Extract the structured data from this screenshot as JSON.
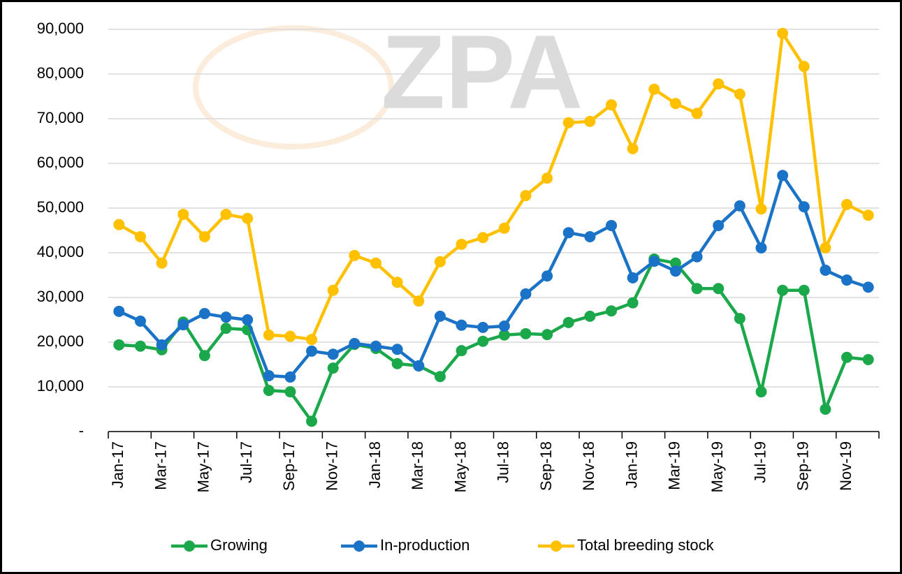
{
  "chart_data": {
    "type": "line",
    "watermark": "ZPA",
    "categories": [
      "Jan-17",
      null,
      "Mar-17",
      null,
      "May-17",
      null,
      "Jul-17",
      null,
      "Sep-17",
      null,
      "Nov-17",
      null,
      "Jan-18",
      null,
      "Mar-18",
      null,
      "May-18",
      null,
      "Jul-18",
      null,
      "Sep-18",
      null,
      "Nov-18",
      null,
      "Jan-19",
      null,
      "Mar-19",
      null,
      "May-19",
      null,
      "Jul-19",
      null,
      "Sep-19",
      null,
      "Nov-19",
      null
    ],
    "series": [
      {
        "name": "Growing",
        "color": "#1aa84a",
        "values": [
          19400,
          19100,
          18300,
          24500,
          17000,
          23100,
          22800,
          9200,
          8900,
          2300,
          14200,
          19500,
          18600,
          15200,
          14700,
          12300,
          18100,
          20200,
          21600,
          21900,
          21700,
          24400,
          25800,
          27000,
          28800,
          38600,
          37700,
          32000,
          32000,
          25300,
          8900,
          31600,
          31600,
          5000,
          16600,
          16100
        ]
      },
      {
        "name": "In-production",
        "color": "#1a73c6",
        "values": [
          26900,
          24700,
          19400,
          23900,
          26400,
          25600,
          25000,
          12500,
          12200,
          18000,
          17300,
          19700,
          19100,
          18400,
          14700,
          25800,
          23800,
          23300,
          23600,
          30800,
          34800,
          44500,
          43600,
          46100,
          34400,
          38100,
          35900,
          39100,
          46100,
          50500,
          41100,
          57300,
          50300,
          36100,
          33900,
          32300
        ]
      },
      {
        "name": "Total breeding stock",
        "color": "#ffc000",
        "values": [
          46300,
          43600,
          37700,
          48600,
          43600,
          48600,
          47700,
          21600,
          21300,
          20600,
          31600,
          39400,
          37700,
          33400,
          29200,
          38000,
          41900,
          43400,
          45500,
          52800,
          56700,
          69100,
          69400,
          73100,
          63300,
          76600,
          73400,
          71200,
          77800,
          75500,
          49800,
          89100,
          81700,
          41100,
          50800,
          48400
        ]
      }
    ],
    "ylim": [
      0,
      90000
    ],
    "yticks": [
      {
        "value": 0,
        "label": "-"
      },
      {
        "value": 10000,
        "label": "10,000"
      },
      {
        "value": 20000,
        "label": "20,000"
      },
      {
        "value": 30000,
        "label": "30,000"
      },
      {
        "value": 40000,
        "label": "40,000"
      },
      {
        "value": 50000,
        "label": "50,000"
      },
      {
        "value": 60000,
        "label": "60,000"
      },
      {
        "value": 70000,
        "label": "70,000"
      },
      {
        "value": 80000,
        "label": "80,000"
      },
      {
        "value": 90000,
        "label": "90,000"
      }
    ],
    "grid": true,
    "legend": "bottom"
  }
}
